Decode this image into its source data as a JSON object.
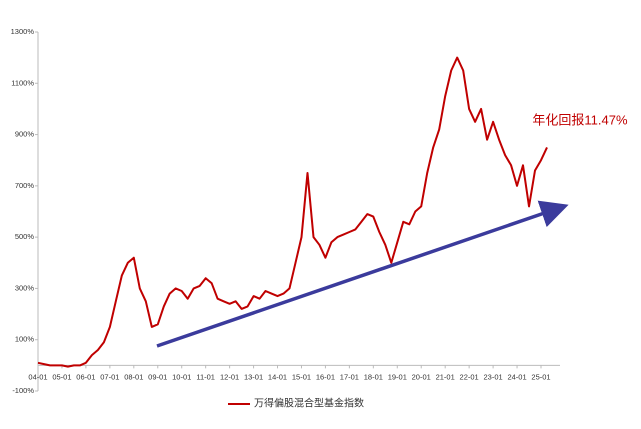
{
  "chart_data": {
    "type": "line",
    "annotation": "年化回报11.47%",
    "x": [
      "04-01",
      "04-04",
      "04-07",
      "04-10",
      "05-01",
      "05-04",
      "05-07",
      "05-10",
      "06-01",
      "06-04",
      "06-07",
      "06-10",
      "07-01",
      "07-04",
      "07-07",
      "07-10",
      "08-01",
      "08-04",
      "08-07",
      "08-10",
      "09-01",
      "09-04",
      "09-07",
      "09-10",
      "10-01",
      "10-04",
      "10-07",
      "10-10",
      "11-01",
      "11-04",
      "11-07",
      "11-10",
      "12-01",
      "12-04",
      "12-07",
      "12-10",
      "13-01",
      "13-04",
      "13-07",
      "13-10",
      "14-01",
      "14-04",
      "14-07",
      "14-10",
      "15-01",
      "15-04",
      "15-07",
      "15-10",
      "16-01",
      "16-04",
      "16-07",
      "16-10",
      "17-01",
      "17-04",
      "17-07",
      "17-10",
      "18-01",
      "18-04",
      "18-07",
      "18-10",
      "19-01",
      "19-04",
      "19-07",
      "19-10",
      "20-01",
      "20-04",
      "20-07",
      "20-10",
      "21-01",
      "21-04",
      "21-07",
      "21-10",
      "22-01",
      "22-04",
      "22-07",
      "22-10",
      "23-01",
      "23-04",
      "23-07",
      "23-10",
      "24-01",
      "24-04",
      "24-07",
      "24-10",
      "25-01",
      "25-04"
    ],
    "series": [
      {
        "name": "万得偏股混合型基金指数",
        "color": "#c00000",
        "values": [
          10,
          5,
          0,
          0,
          0,
          -5,
          0,
          0,
          10,
          40,
          60,
          90,
          150,
          250,
          350,
          400,
          420,
          300,
          250,
          150,
          160,
          230,
          280,
          300,
          290,
          260,
          300,
          310,
          340,
          320,
          260,
          250,
          240,
          250,
          220,
          230,
          270,
          260,
          290,
          280,
          270,
          280,
          300,
          400,
          500,
          750,
          500,
          470,
          420,
          480,
          500,
          510,
          520,
          530,
          560,
          590,
          580,
          520,
          470,
          400,
          480,
          560,
          550,
          600,
          620,
          750,
          850,
          920,
          1050,
          1150,
          1200,
          1150,
          1000,
          950,
          1000,
          880,
          950,
          880,
          820,
          780,
          700,
          780,
          620,
          760,
          800,
          850
        ]
      }
    ],
    "xticks": [
      "04-01",
      "05-01",
      "06-01",
      "07-01",
      "08-01",
      "09-01",
      "10-01",
      "11-01",
      "12-01",
      "13-01",
      "14-01",
      "15-01",
      "16-01",
      "17-01",
      "18-01",
      "19-01",
      "20-01",
      "21-01",
      "22-01",
      "23-01",
      "24-01",
      "25-01"
    ],
    "ylim": [
      -100,
      1300
    ],
    "yticks": [
      {
        "value": -100,
        "label": "-100%"
      },
      {
        "value": 100,
        "label": "100%"
      },
      {
        "value": 300,
        "label": "300%"
      },
      {
        "value": 500,
        "label": "500%"
      },
      {
        "value": 700,
        "label": "700%"
      },
      {
        "value": 900,
        "label": "900%"
      },
      {
        "value": 1100,
        "label": "1100%"
      },
      {
        "value": 1300,
        "label": "1300%"
      }
    ]
  }
}
